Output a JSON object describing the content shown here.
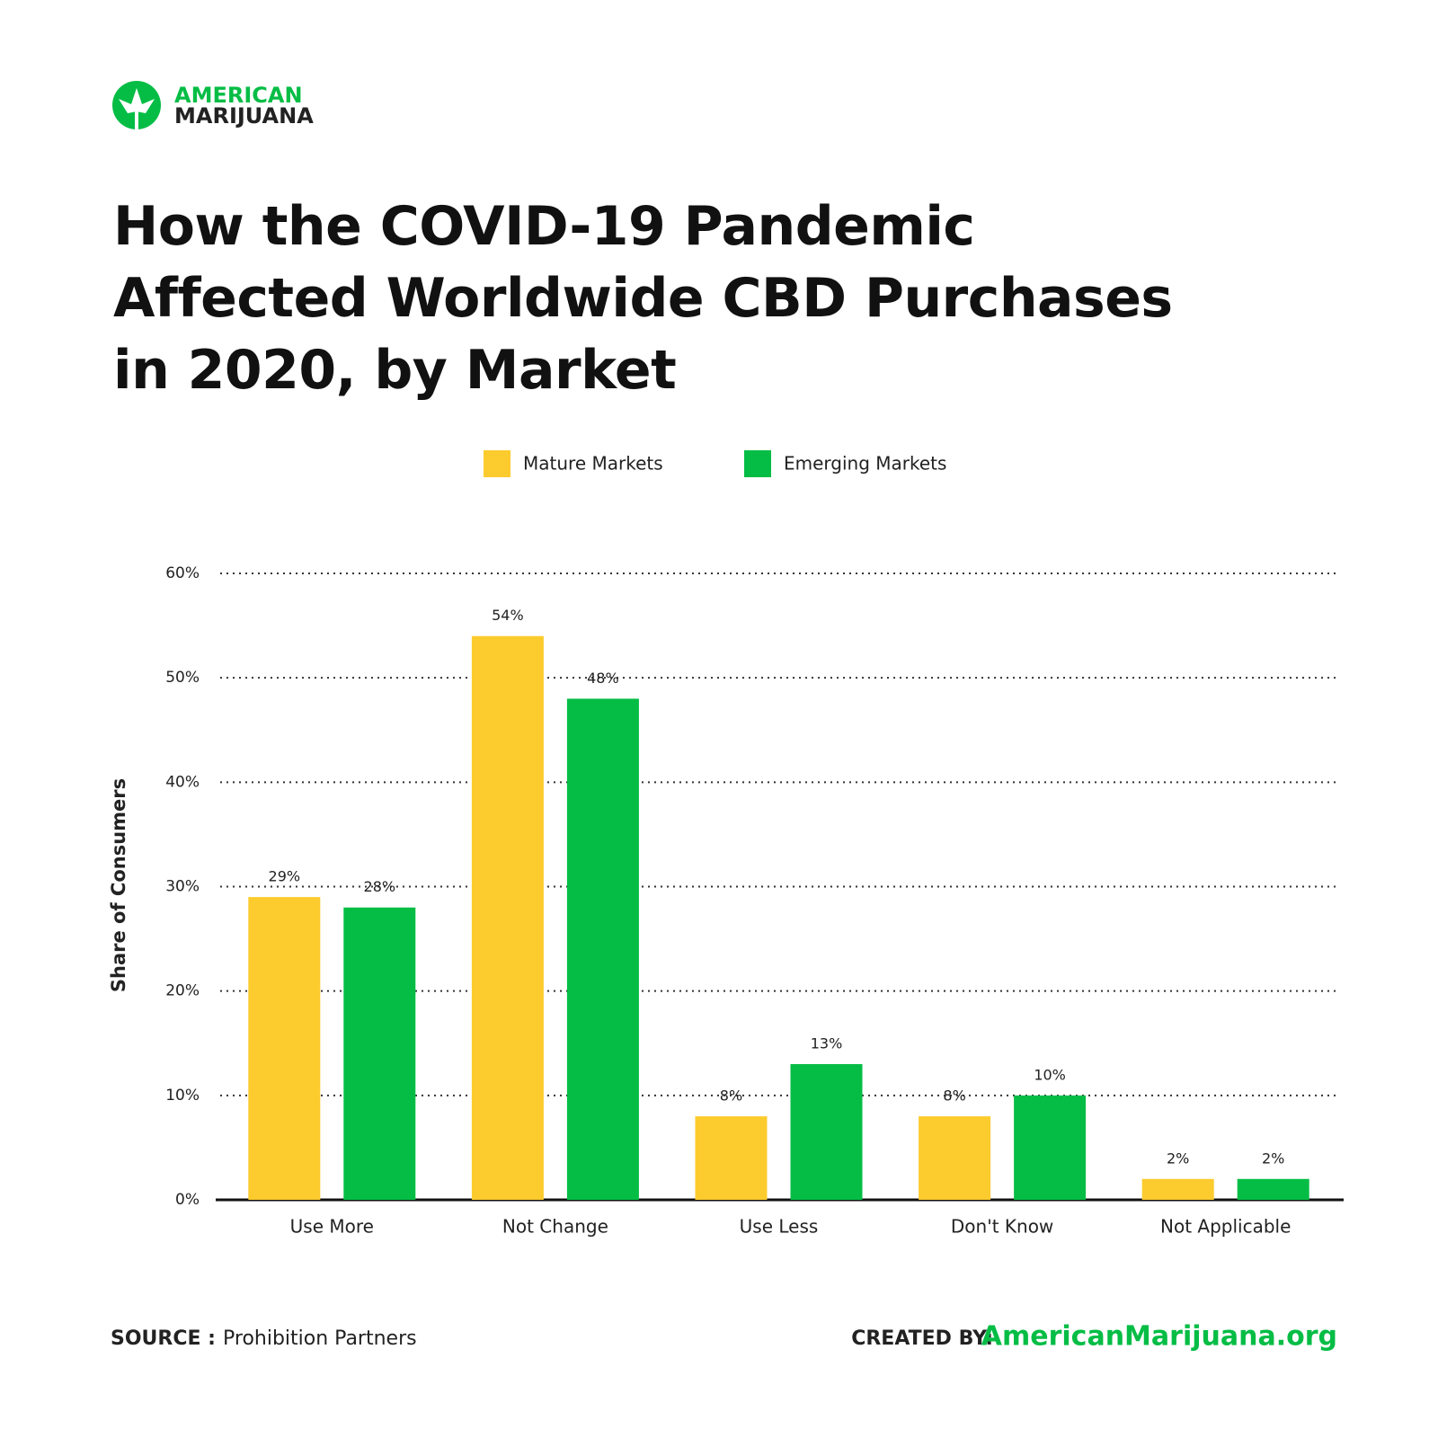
{
  "logo": {
    "line1": "AMERICAN",
    "line2": "MARIJUANA"
  },
  "chart_data": {
    "type": "bar",
    "title": "How the COVID-19 Pandemic Affected Worldwide CBD Purchases in 2020, by Market",
    "y_label": "Share of Consumers",
    "categories": [
      "Use More",
      "Not Change",
      "Use Less",
      "Don't Know",
      "Not Applicable"
    ],
    "series": [
      {
        "name": "Mature Markets",
        "color": "#fccb2e",
        "values": [
          29,
          54,
          8,
          8,
          2
        ],
        "value_labels": [
          "29%",
          "54%",
          "8%",
          "8%",
          "2%"
        ]
      },
      {
        "name": "Emerging Markets",
        "color": "#05bd45",
        "values": [
          28,
          48,
          13,
          10,
          2
        ],
        "value_labels": [
          "28%",
          "48%",
          "13%",
          "10%",
          "2%"
        ]
      }
    ],
    "ylim": [
      0,
      60
    ],
    "yticks": [
      {
        "value": 0,
        "label": "0%"
      },
      {
        "value": 10,
        "label": "10%"
      },
      {
        "value": 20,
        "label": "20%"
      },
      {
        "value": 30,
        "label": "30%"
      },
      {
        "value": 40,
        "label": "40%"
      },
      {
        "value": 50,
        "label": "50%"
      },
      {
        "value": 60,
        "label": "60%"
      }
    ],
    "grid": true,
    "legend_position": "top"
  },
  "footer": {
    "source_label": "SOURCE :",
    "source": "Prohibition Partners",
    "credit_label": "CREATED BY:",
    "credit": "AmericanMarijuana.org"
  }
}
